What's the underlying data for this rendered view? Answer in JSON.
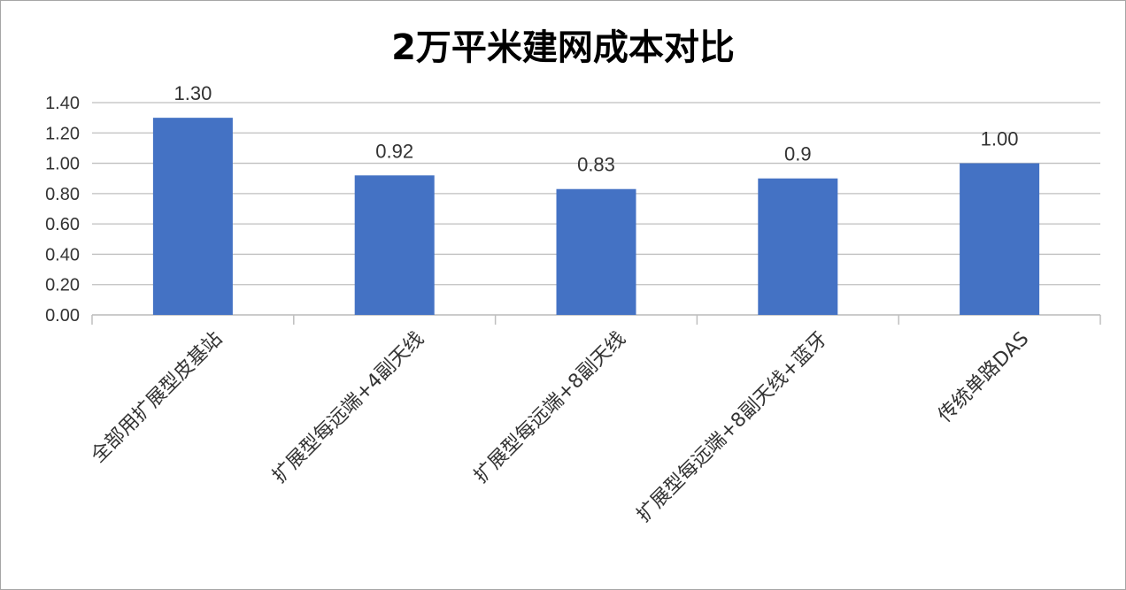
{
  "chart_data": {
    "type": "bar",
    "title": "2万平米建网成本对比",
    "categories": [
      "全部用扩展型皮基站",
      "扩展型每远端+4副天线",
      "扩展型每远端+8副天线",
      "扩展型每远端+8副天线+蓝牙",
      "传统单路DAS"
    ],
    "values": [
      1.3,
      0.92,
      0.83,
      0.9,
      1.0
    ],
    "data_labels": [
      "1.30",
      "0.92",
      "0.83",
      "0.9",
      "1.00"
    ],
    "ylim": [
      0,
      1.4
    ],
    "yticks": [
      "0.00",
      "0.20",
      "0.40",
      "0.60",
      "0.80",
      "1.00",
      "1.20",
      "1.40"
    ],
    "xlabel": "",
    "ylabel": "",
    "grid": true,
    "legend": "none",
    "bar_color": "#4472c4"
  }
}
